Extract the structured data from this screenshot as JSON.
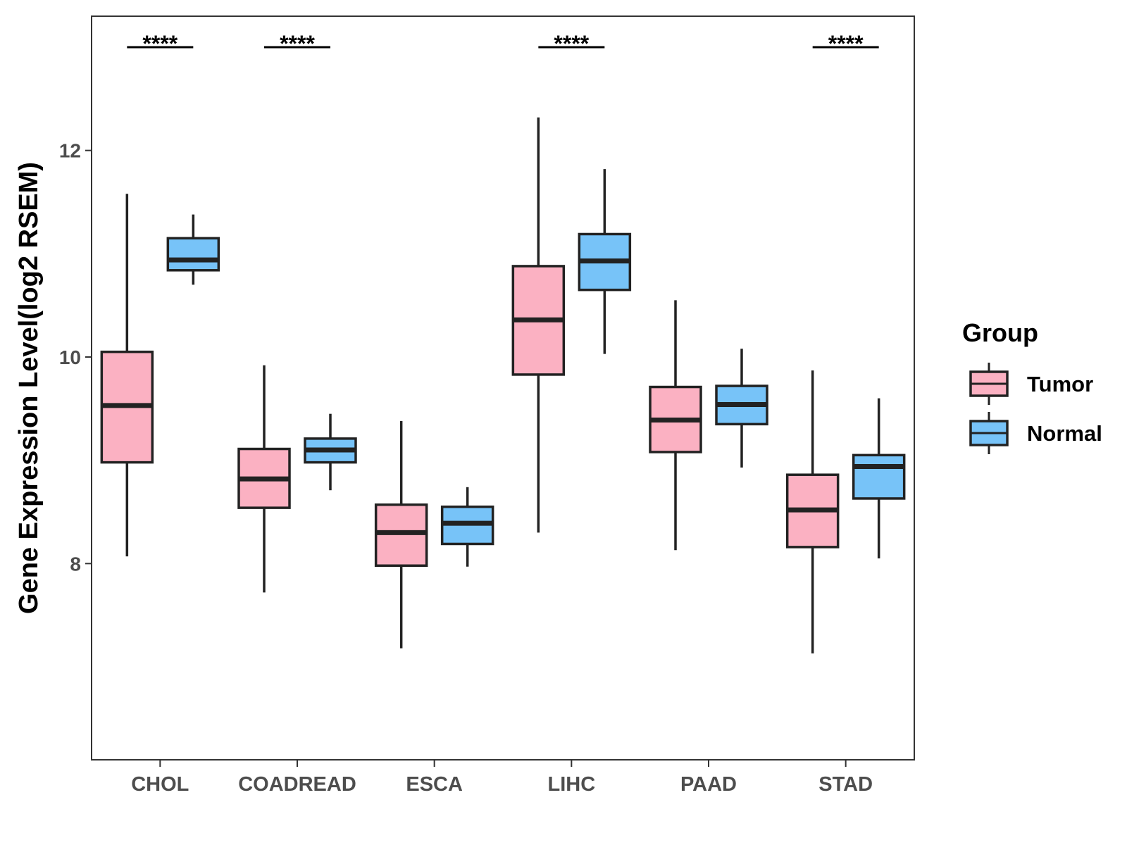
{
  "chart_data": {
    "type": "boxplot",
    "title": "",
    "xlabel": "",
    "ylabel": "Gene Expression Level(log2 RSEM)",
    "ylim": [
      6.1,
      13.3
    ],
    "yticks": [
      8,
      10,
      12
    ],
    "grid": false,
    "legend": {
      "title": "Group",
      "position": "right",
      "entries": [
        {
          "name": "Tumor",
          "color": "#fbb1c2"
        },
        {
          "name": "Normal",
          "color": "#77c3f8"
        }
      ]
    },
    "categories": [
      "CHOL",
      "COADREAD",
      "ESCA",
      "LIHC",
      "PAAD",
      "STAD"
    ],
    "series": [
      {
        "name": "Tumor",
        "color": "#fbb1c2",
        "boxes": [
          {
            "min": 8.07,
            "q1": 8.98,
            "median": 9.53,
            "q3": 10.05,
            "max": 11.58
          },
          {
            "min": 7.72,
            "q1": 8.54,
            "median": 8.82,
            "q3": 9.11,
            "max": 9.92
          },
          {
            "min": 7.18,
            "q1": 7.98,
            "median": 8.3,
            "q3": 8.57,
            "max": 9.38
          },
          {
            "min": 8.3,
            "q1": 9.83,
            "median": 10.36,
            "q3": 10.88,
            "max": 12.32
          },
          {
            "min": 8.13,
            "q1": 9.08,
            "median": 9.39,
            "q3": 9.71,
            "max": 10.55
          },
          {
            "min": 7.13,
            "q1": 8.16,
            "median": 8.52,
            "q3": 8.86,
            "max": 9.87
          }
        ]
      },
      {
        "name": "Normal",
        "color": "#77c3f8",
        "boxes": [
          {
            "min": 10.7,
            "q1": 10.84,
            "median": 10.94,
            "q3": 11.15,
            "max": 11.38
          },
          {
            "min": 8.71,
            "q1": 8.98,
            "median": 9.1,
            "q3": 9.21,
            "max": 9.45
          },
          {
            "min": 7.97,
            "q1": 8.19,
            "median": 8.39,
            "q3": 8.55,
            "max": 8.74
          },
          {
            "min": 10.03,
            "q1": 10.65,
            "median": 10.93,
            "q3": 11.19,
            "max": 11.82
          },
          {
            "min": 8.93,
            "q1": 9.35,
            "median": 9.54,
            "q3": 9.72,
            "max": 10.08
          },
          {
            "min": 8.05,
            "q1": 8.63,
            "median": 8.94,
            "q3": 9.05,
            "max": 9.6
          }
        ]
      }
    ],
    "annotations": [
      {
        "category": "CHOL",
        "label": "****"
      },
      {
        "category": "COADREAD",
        "label": "****"
      },
      {
        "category": "LIHC",
        "label": "****"
      },
      {
        "category": "STAD",
        "label": "****"
      }
    ],
    "significance_level": 13.0
  }
}
